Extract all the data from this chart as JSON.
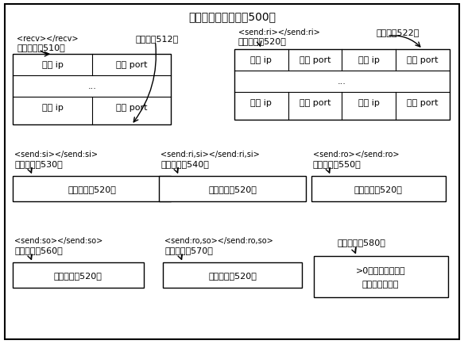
{
  "title": "传输配置内存映射（500）",
  "bg_color": "#ffffff",
  "fig_width": 5.84,
  "fig_height": 4.35,
  "dpi": 100,
  "recv_tag": "<recv></recv>",
  "recv_label": "接收配置（510）",
  "cfg512": "配置项（512）",
  "wangxu_ip": "网序 ip",
  "wangxu_port": "网序 port",
  "send_ri_tag": "<send:ri></send:ri>",
  "send_ri_label": "发送配置（520）",
  "cfg522": "配置项（522）",
  "bendi_ip": "本地 ip",
  "bendi_port": "本地 port",
  "yuancheng_ip": "远程 ip",
  "yuancheng_port": "远程 port",
  "dots": "...",
  "send_si_tag": "<send:si></send:si>",
  "send_si_label": "发送配置（530）",
  "send_risi_tag": "<send:ri,si></send:ri,si>",
  "send_risi_label": "发送配置（540）",
  "send_ro_tag": "<send:ro></send:ro>",
  "send_ro_label": "发送配置（550）",
  "send_so_tag": "<send:so></send:so>",
  "send_so_label": "发送配置（560）",
  "send_roso_tag": "<send:ro,so></send:ro,so>",
  "send_roso_label": "发送配置（570）",
  "send_period_label": "发送周期（580）",
  "struct_same": "结构类同（520）",
  "period_text1": ">0：自动更新周期",
  "period_text2": "否则：显式更新"
}
